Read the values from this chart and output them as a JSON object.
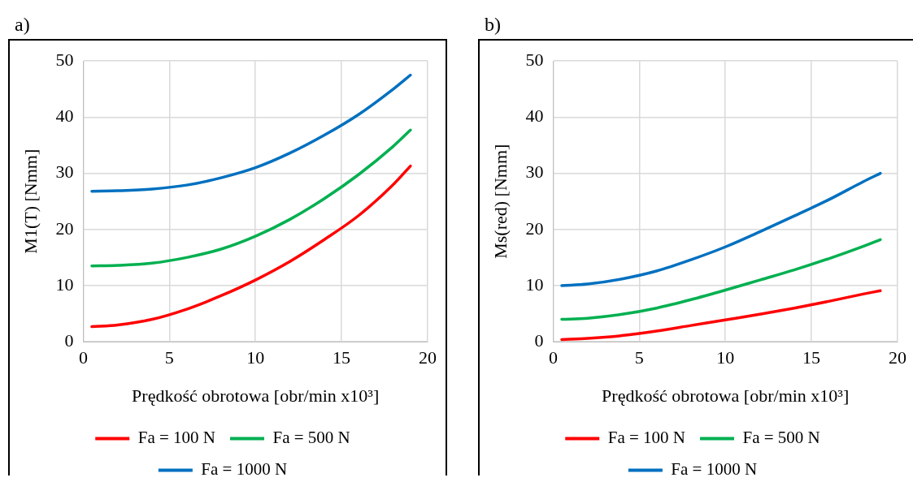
{
  "chart_data": [
    {
      "type": "line",
      "title": "a)",
      "xlabel": "Prędkość obrotowa [obr/min x10³]",
      "ylabel": "M1(T) [Nmm]",
      "x": [
        0.5,
        2,
        4,
        6,
        8,
        10,
        12,
        14,
        16,
        18,
        19
      ],
      "xlim": [
        0,
        20
      ],
      "xticks": [
        0,
        5,
        10,
        15,
        20
      ],
      "ylim": [
        0,
        50
      ],
      "yticks": [
        0,
        10,
        20,
        30,
        40,
        50
      ],
      "grid": true,
      "legend": "bottom",
      "marker": "none",
      "line_style": "solid",
      "series": [
        {
          "name": "Fa = 100 N",
          "color": "#ff0000",
          "values": [
            2.7,
            3.0,
            4.0,
            5.8,
            8.2,
            11,
            14.3,
            18.2,
            22.5,
            28,
            31.3
          ]
        },
        {
          "name": "Fa = 500 N",
          "color": "#00b050",
          "values": [
            13.5,
            13.6,
            14.0,
            15,
            16.5,
            18.8,
            21.8,
            25.5,
            29.8,
            34.8,
            37.7
          ]
        },
        {
          "name": "Fa = 1000 N",
          "color": "#0070c0",
          "values": [
            26.8,
            26.9,
            27.2,
            27.9,
            29.2,
            31,
            33.6,
            36.8,
            40.5,
            45,
            47.5
          ]
        }
      ]
    },
    {
      "type": "line",
      "title": "b)",
      "xlabel": "Prędkość obrotowa [obr/min x10³]",
      "ylabel": "Ms(red) [Nmm]",
      "x": [
        0.5,
        2,
        4,
        6,
        8,
        10,
        12,
        14,
        16,
        18,
        19
      ],
      "xlim": [
        0,
        20
      ],
      "xticks": [
        0,
        5,
        10,
        15,
        20
      ],
      "ylim": [
        0,
        50
      ],
      "yticks": [
        0,
        10,
        20,
        30,
        40,
        50
      ],
      "grid": true,
      "legend": "bottom",
      "marker": "none",
      "line_style": "solid",
      "series": [
        {
          "name": "Fa = 100 N",
          "color": "#ff0000",
          "values": [
            0.4,
            0.6,
            1.1,
            1.9,
            2.9,
            3.9,
            4.9,
            6.0,
            7.2,
            8.5,
            9.1
          ]
        },
        {
          "name": "Fa = 500 N",
          "color": "#00b050",
          "values": [
            4,
            4.2,
            4.9,
            6.0,
            7.5,
            9.2,
            11,
            12.8,
            14.8,
            17,
            18.2
          ]
        },
        {
          "name": "Fa = 1000 N",
          "color": "#0070c0",
          "values": [
            10,
            10.3,
            11.2,
            12.6,
            14.6,
            16.9,
            19.6,
            22.4,
            25.3,
            28.5,
            30
          ]
        }
      ]
    }
  ]
}
